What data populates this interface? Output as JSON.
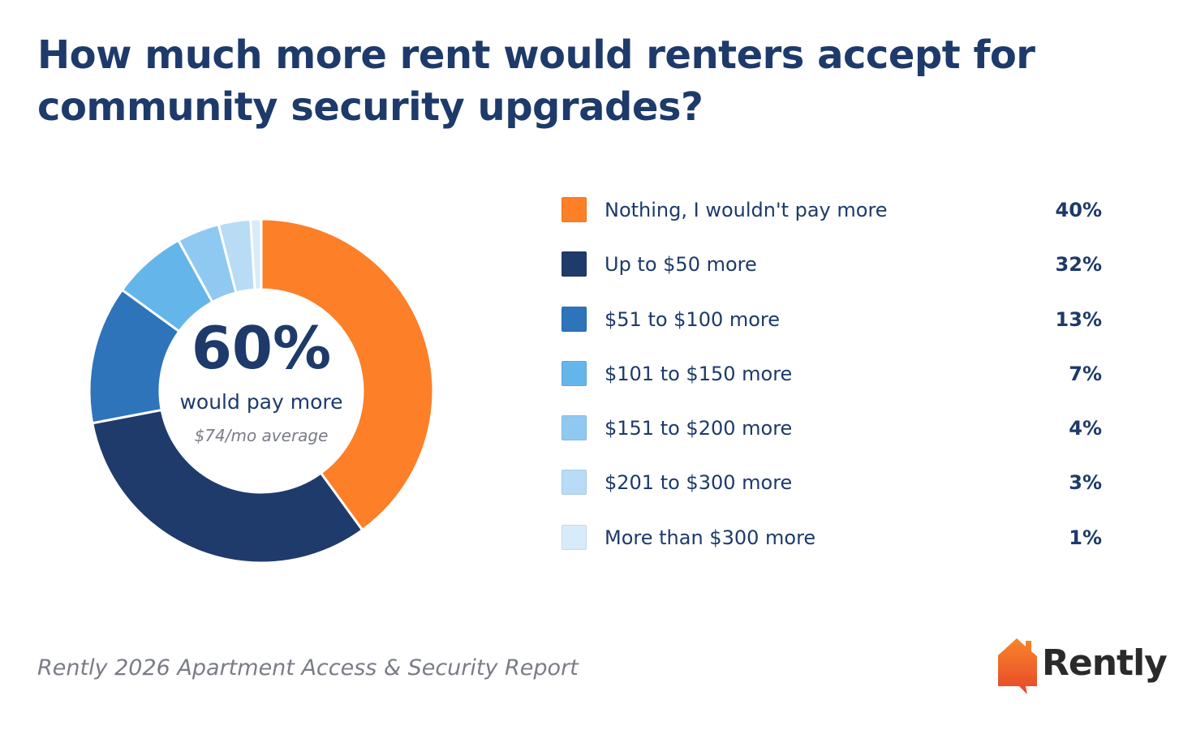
{
  "chart_data": {
    "type": "pie",
    "title": "How much more rent would renters accept for community security upgrades?",
    "categories": [
      "Nothing, I wouldn't pay more",
      "Up to $50 more",
      "$51 to $100 more",
      "$101 to $150 more",
      "$151 to $200 more",
      "$201 to $300 more",
      "More than $300 more"
    ],
    "values": [
      40,
      32,
      13,
      7,
      4,
      3,
      1
    ],
    "value_labels": [
      "40%",
      "32%",
      "13%",
      "7%",
      "4%",
      "3%",
      "1%"
    ],
    "colors": [
      "#fd7f27",
      "#1f3b6b",
      "#2e74bb",
      "#64b5ea",
      "#8fc9f2",
      "#b8dbf6",
      "#d8ebfb"
    ],
    "donut": true,
    "center_value": "60%",
    "center_label": "would pay more",
    "center_sublabel": "$74/mo average",
    "legend_position": "right"
  },
  "footer": {
    "source": "Rently 2026 Apartment Access & Security Report",
    "brand": "Rently"
  }
}
